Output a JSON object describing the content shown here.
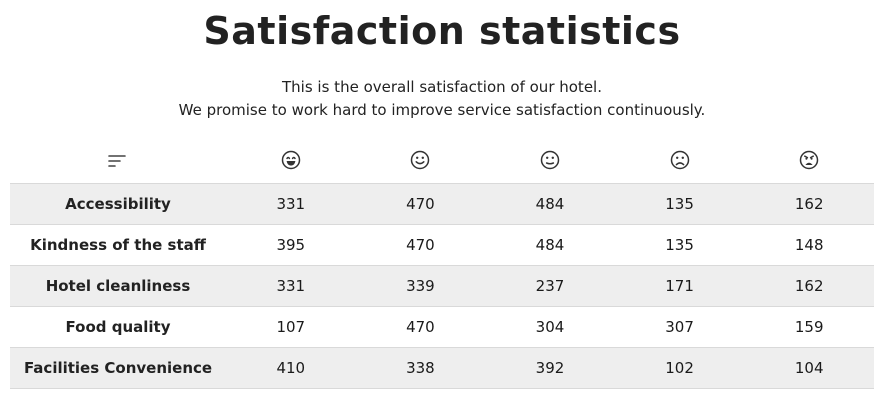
{
  "page": {
    "title": "Satisfaction statistics",
    "subtitle_line1": "This is the overall satisfaction of our hotel.",
    "subtitle_line2": "We promise to work hard to improve service satisfaction continuously."
  },
  "table": {
    "header_icons": [
      "sort-icon",
      "very-satisfied-face-icon",
      "satisfied-face-icon",
      "neutral-face-icon",
      "dissatisfied-face-icon",
      "very-dissatisfied-face-icon"
    ],
    "rows": [
      {
        "label": "Accessibility",
        "values": [
          "331",
          "470",
          "484",
          "135",
          "162"
        ]
      },
      {
        "label": "Kindness of the staff",
        "values": [
          "395",
          "470",
          "484",
          "135",
          "148"
        ]
      },
      {
        "label": "Hotel cleanliness",
        "values": [
          "331",
          "339",
          "237",
          "171",
          "162"
        ]
      },
      {
        "label": "Food quality",
        "values": [
          "107",
          "470",
          "304",
          "307",
          "159"
        ]
      },
      {
        "label": "Facilities Convenience",
        "values": [
          "410",
          "338",
          "392",
          "102",
          "104"
        ]
      }
    ]
  },
  "colors": {
    "row_shade": "#eeeeee",
    "border": "#d9d9d9",
    "text": "#222222"
  }
}
